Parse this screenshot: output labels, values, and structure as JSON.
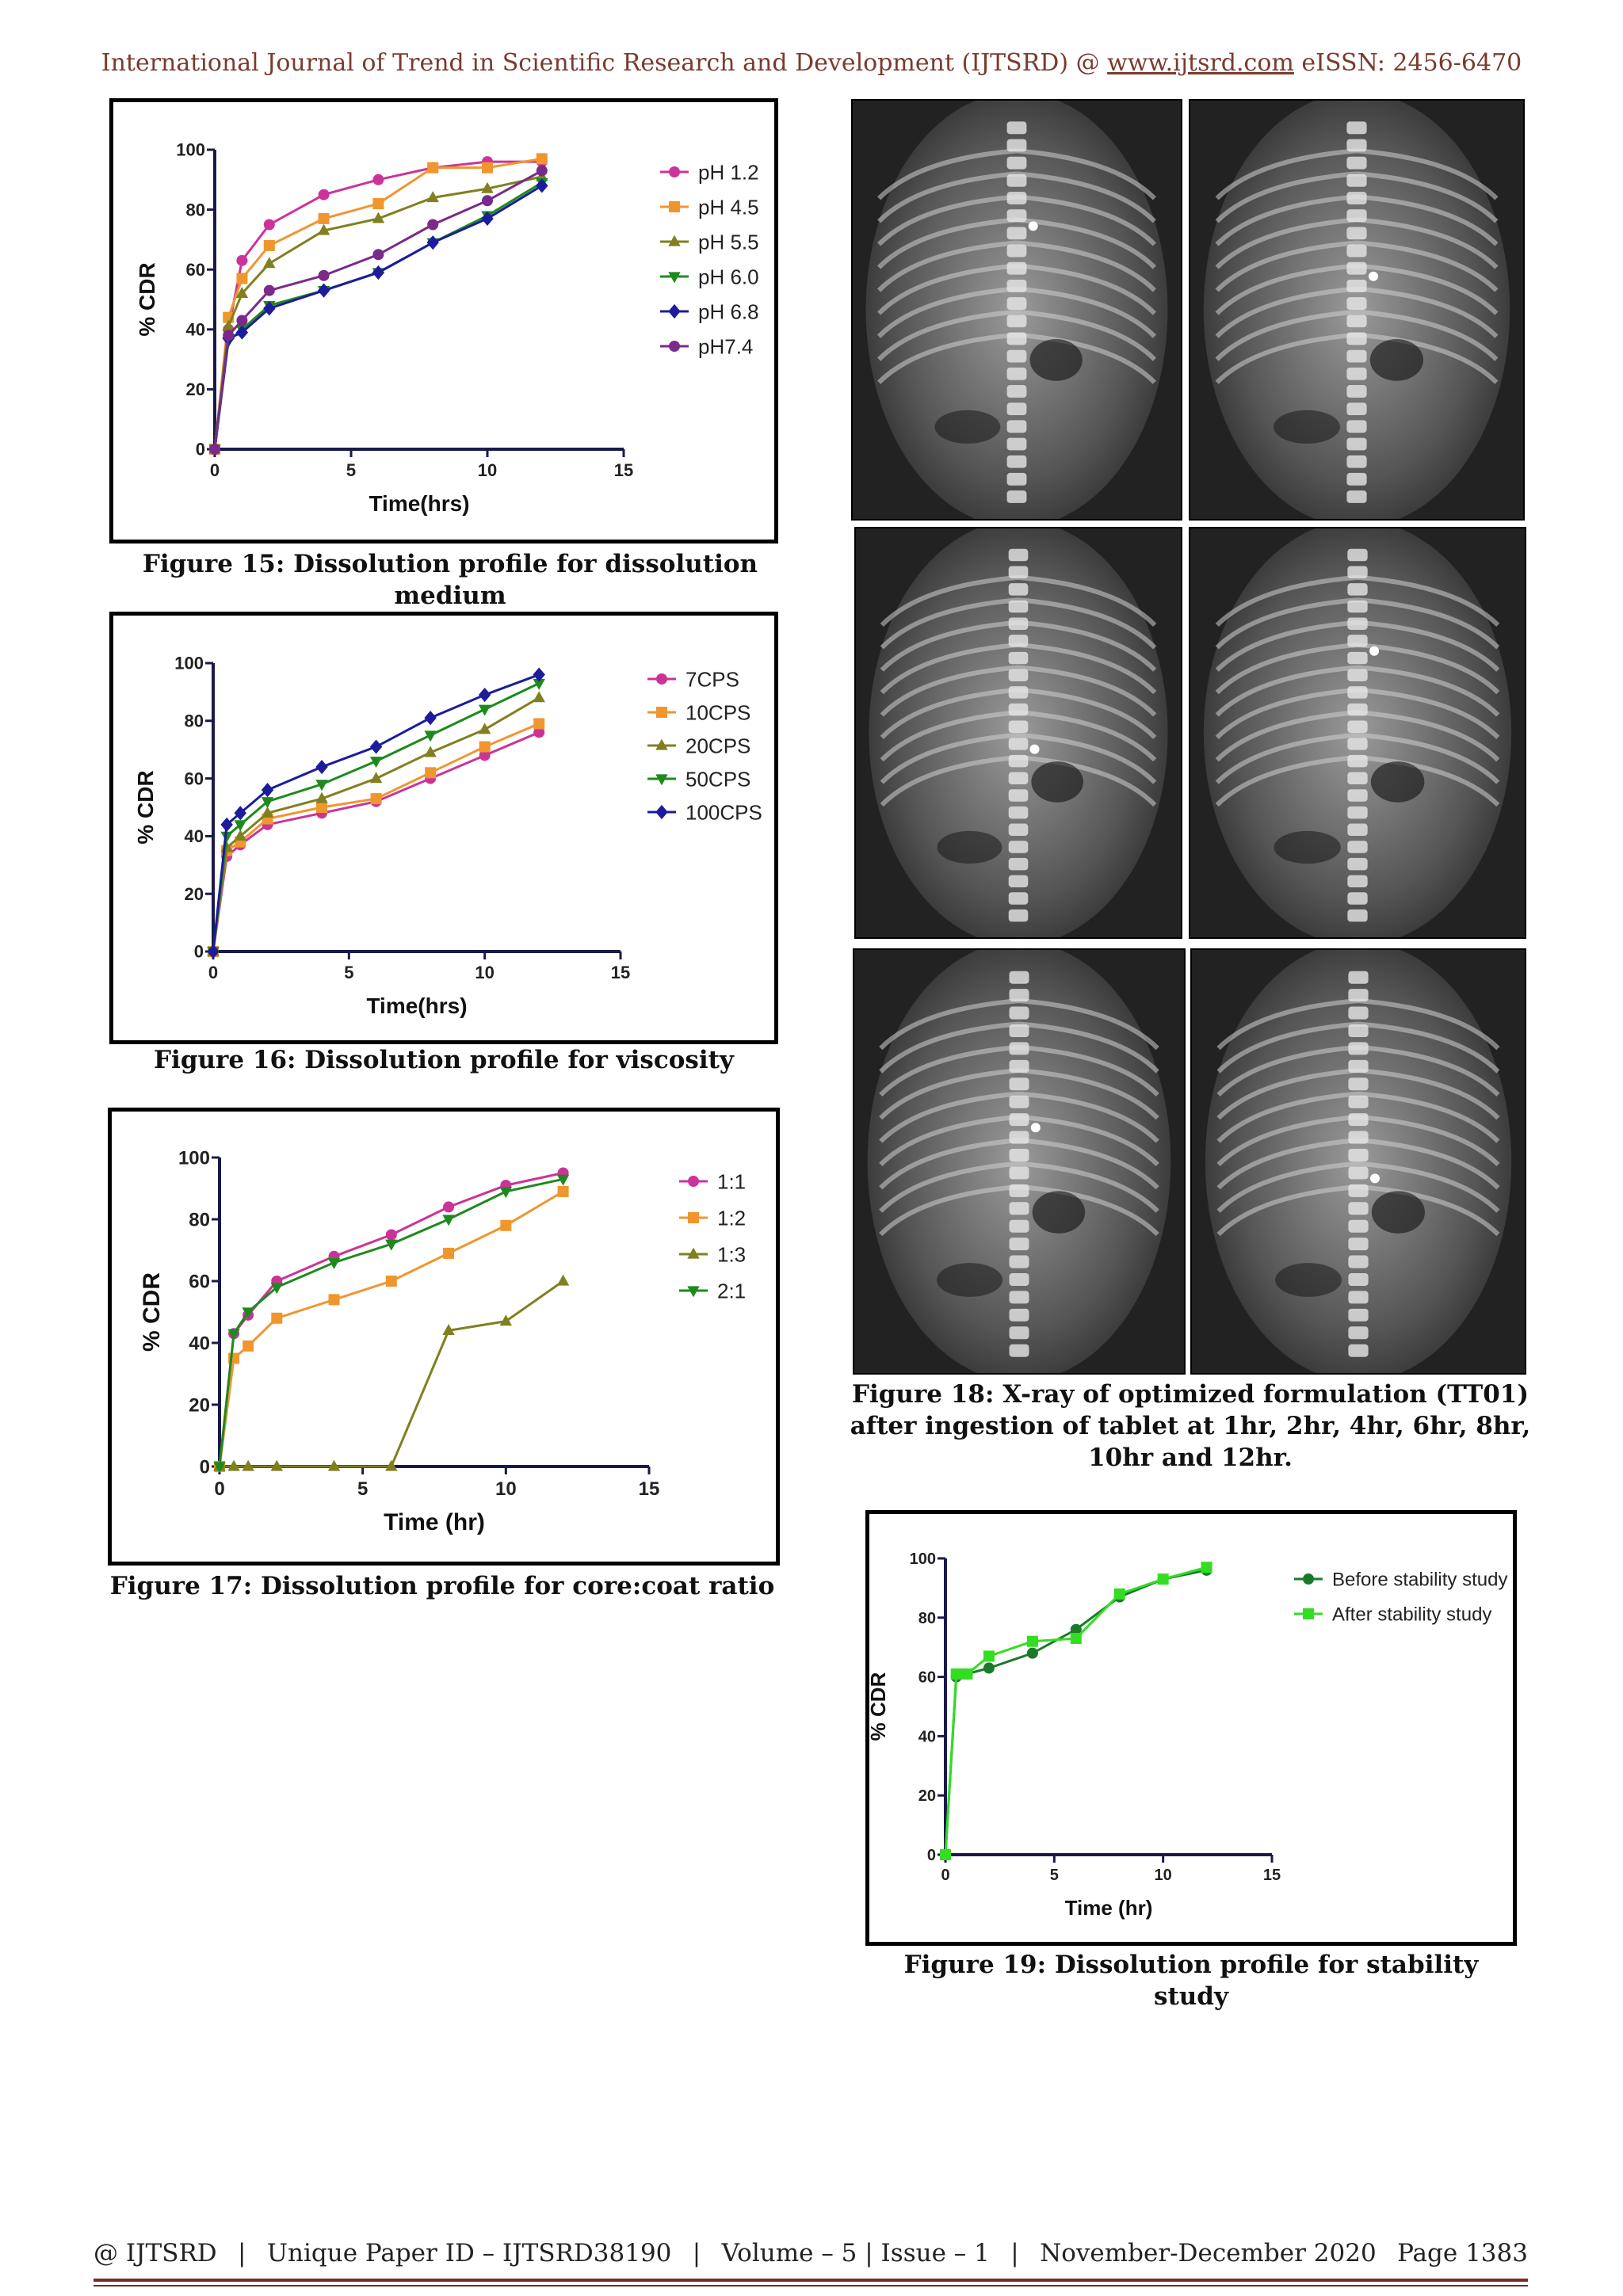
{
  "header": {
    "prefix": "International Journal of Trend in Scientific Research and Development (IJTSRD) @ ",
    "link": "www.ijtsrd.com",
    "suffix": " eISSN: 2456-6470"
  },
  "captions": {
    "fig15": "Figure 15: Dissolution profile for dissolution medium",
    "fig16": "Figure 16: Dissolution profile for viscosity",
    "fig17": "Figure 17: Dissolution profile for core:coat ratio",
    "fig18": "Figure 18: X-ray of optimized formulation (TT01) after ingestion of tablet at 1hr, 2hr, 4hr, 6hr, 8hr, 10hr and 12hr.",
    "fig19": "Figure 19: Dissolution profile for stability study"
  },
  "footer": {
    "left": "@ IJTSRD",
    "sep": "|",
    "paper_id": "Unique Paper ID – IJTSRD38190",
    "volume": "Volume – 5 | Issue – 1",
    "date": "November-December 2020",
    "page": "Page 1383"
  },
  "chart_data": [
    {
      "id": "fig15",
      "type": "line",
      "xlabel": "Time(hrs)",
      "ylabel": "% CDR",
      "xlim": [
        0,
        15
      ],
      "ylim": [
        0,
        100
      ],
      "xticks": [
        0,
        5,
        10,
        15
      ],
      "yticks": [
        0,
        20,
        40,
        60,
        80,
        100
      ],
      "legend": "right",
      "series": [
        {
          "name": "pH 1.2",
          "color": "#cc3399",
          "marker": "circle",
          "x": [
            0,
            0.5,
            1,
            2,
            4,
            6,
            8,
            10,
            12
          ],
          "y": [
            0,
            40,
            63,
            75,
            85,
            90,
            94,
            96,
            96
          ]
        },
        {
          "name": "pH 4.5",
          "color": "#f0962e",
          "marker": "square",
          "x": [
            0,
            0.5,
            1,
            2,
            4,
            6,
            8,
            10,
            12
          ],
          "y": [
            0,
            44,
            57,
            68,
            77,
            82,
            94,
            94,
            97
          ]
        },
        {
          "name": "pH 5.5",
          "color": "#808020",
          "marker": "triangle-up",
          "x": [
            0,
            0.5,
            1,
            2,
            4,
            6,
            8,
            10,
            12
          ],
          "y": [
            0,
            41,
            52,
            62,
            73,
            77,
            84,
            87,
            91
          ]
        },
        {
          "name": "pH 6.0",
          "color": "#1e8a1e",
          "marker": "triangle-down",
          "x": [
            0,
            0.5,
            1,
            2,
            4,
            6,
            8,
            10,
            12
          ],
          "y": [
            0,
            36,
            40,
            48,
            53,
            59,
            69,
            78,
            89
          ]
        },
        {
          "name": "pH 6.8",
          "color": "#1c1c9c",
          "marker": "diamond",
          "x": [
            0,
            0.5,
            1,
            2,
            4,
            6,
            8,
            10,
            12
          ],
          "y": [
            0,
            37,
            39,
            47,
            53,
            59,
            69,
            77,
            88
          ]
        },
        {
          "name": "pH7.4",
          "color": "#7a2a8a",
          "marker": "circle",
          "x": [
            0,
            0.5,
            1,
            2,
            4,
            6,
            8,
            10,
            12
          ],
          "y": [
            0,
            38,
            43,
            53,
            58,
            65,
            75,
            83,
            93
          ]
        }
      ]
    },
    {
      "id": "fig16",
      "type": "line",
      "xlabel": "Time(hrs)",
      "ylabel": "% CDR",
      "xlim": [
        0,
        15
      ],
      "ylim": [
        0,
        100
      ],
      "xticks": [
        0,
        5,
        10,
        15
      ],
      "yticks": [
        0,
        20,
        40,
        60,
        80,
        100
      ],
      "legend": "right",
      "series": [
        {
          "name": "7CPS",
          "color": "#cc3399",
          "marker": "circle",
          "x": [
            0,
            0.5,
            1,
            2,
            4,
            6,
            8,
            10,
            12
          ],
          "y": [
            0,
            33,
            37,
            44,
            48,
            52,
            60,
            68,
            76
          ]
        },
        {
          "name": "10CPS",
          "color": "#f0962e",
          "marker": "square",
          "x": [
            0,
            0.5,
            1,
            2,
            4,
            6,
            8,
            10,
            12
          ],
          "y": [
            0,
            35,
            38,
            46,
            50,
            53,
            62,
            71,
            79
          ]
        },
        {
          "name": "20CPS",
          "color": "#808020",
          "marker": "triangle-up",
          "x": [
            0,
            0.5,
            1,
            2,
            4,
            6,
            8,
            10,
            12
          ],
          "y": [
            0,
            36,
            40,
            48,
            53,
            60,
            69,
            77,
            88
          ]
        },
        {
          "name": "50CPS",
          "color": "#1e8a1e",
          "marker": "triangle-down",
          "x": [
            0,
            0.5,
            1,
            2,
            4,
            6,
            8,
            10,
            12
          ],
          "y": [
            0,
            40,
            44,
            52,
            58,
            66,
            75,
            84,
            93
          ]
        },
        {
          "name": "100CPS",
          "color": "#1c1c9c",
          "marker": "diamond",
          "x": [
            0,
            0.5,
            1,
            2,
            4,
            6,
            8,
            10,
            12
          ],
          "y": [
            0,
            44,
            48,
            56,
            64,
            71,
            81,
            89,
            96
          ]
        }
      ]
    },
    {
      "id": "fig17",
      "type": "line",
      "xlabel": "Time (hr)",
      "ylabel": "% CDR",
      "xlim": [
        0,
        15
      ],
      "ylim": [
        0,
        100
      ],
      "xticks": [
        0,
        5,
        10,
        15
      ],
      "yticks": [
        0,
        20,
        40,
        60,
        80,
        100
      ],
      "legend": "right",
      "series": [
        {
          "name": "1:1",
          "color": "#cc3399",
          "marker": "circle",
          "x": [
            0,
            0.5,
            1,
            2,
            4,
            6,
            8,
            10,
            12
          ],
          "y": [
            0,
            43,
            49,
            60,
            68,
            75,
            84,
            91,
            95
          ]
        },
        {
          "name": "1:2",
          "color": "#f0962e",
          "marker": "square",
          "x": [
            0,
            0.5,
            1,
            2,
            4,
            6,
            8,
            10,
            12
          ],
          "y": [
            0,
            35,
            39,
            48,
            54,
            60,
            69,
            78,
            89
          ]
        },
        {
          "name": "1:3",
          "color": "#808020",
          "marker": "triangle-up",
          "x": [
            0,
            0.5,
            1,
            2,
            4,
            6,
            8,
            10,
            12
          ],
          "y": [
            0,
            0,
            0,
            0,
            0,
            0,
            44,
            47,
            60
          ]
        },
        {
          "name": "2:1",
          "color": "#1e8a1e",
          "marker": "triangle-down",
          "x": [
            0,
            0.5,
            1,
            2,
            4,
            6,
            8,
            10,
            12
          ],
          "y": [
            0,
            43,
            50,
            58,
            66,
            72,
            80,
            89,
            93
          ]
        }
      ]
    },
    {
      "id": "fig19",
      "type": "line",
      "xlabel": "Time (hr)",
      "ylabel": "% CDR",
      "xlim": [
        0,
        15
      ],
      "ylim": [
        0,
        100
      ],
      "xticks": [
        0,
        5,
        10,
        15
      ],
      "yticks": [
        0,
        20,
        40,
        60,
        80,
        100
      ],
      "legend": "top-right",
      "series": [
        {
          "name": "Before stability study",
          "color": "#1a7a2a",
          "marker": "circle",
          "x": [
            0,
            0.5,
            1,
            2,
            4,
            6,
            8,
            10,
            12
          ],
          "y": [
            0,
            60,
            61,
            63,
            68,
            76,
            87,
            93,
            96
          ]
        },
        {
          "name": "After stability study",
          "color": "#33dd22",
          "marker": "square",
          "x": [
            0,
            0.5,
            1,
            2,
            4,
            6,
            8,
            10,
            12
          ],
          "y": [
            0,
            61,
            61,
            67,
            72,
            73,
            88,
            93,
            97
          ]
        }
      ]
    }
  ]
}
